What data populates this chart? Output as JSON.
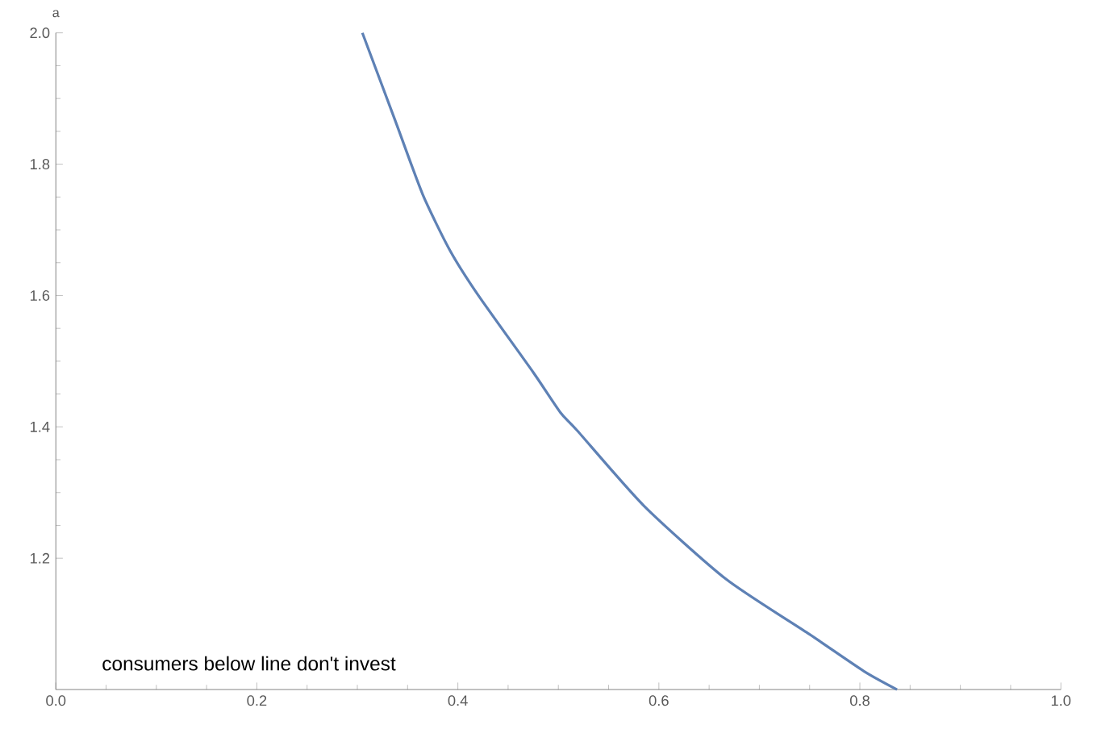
{
  "chart_data": {
    "type": "line",
    "ylabel": "a",
    "x": [
      0.305,
      0.338,
      0.365,
      0.392,
      0.42,
      0.475,
      0.502,
      0.519,
      0.585,
      0.667,
      0.75,
      0.804,
      0.837
    ],
    "series": [
      {
        "color": "#5e81b5",
        "values": [
          2.0,
          1.865,
          1.754,
          1.669,
          1.601,
          1.483,
          1.422,
          1.394,
          1.28,
          1.168,
          1.084,
          1.028,
          1.0
        ]
      }
    ],
    "xlim": [
      0,
      1
    ],
    "ylim": [
      1,
      2
    ],
    "xticks": [
      {
        "value": 0,
        "label": "0.0"
      },
      0.2,
      0.4,
      0.6,
      0.8,
      {
        "value": 1,
        "label": "1.0"
      }
    ],
    "yticks": [
      1.2,
      1.4,
      1.6,
      1.8,
      {
        "value": 2,
        "label": "2.0"
      }
    ],
    "annotations": [
      "consumers below line don't invest"
    ],
    "grid": false,
    "marker": "none",
    "line_style": "solid"
  }
}
